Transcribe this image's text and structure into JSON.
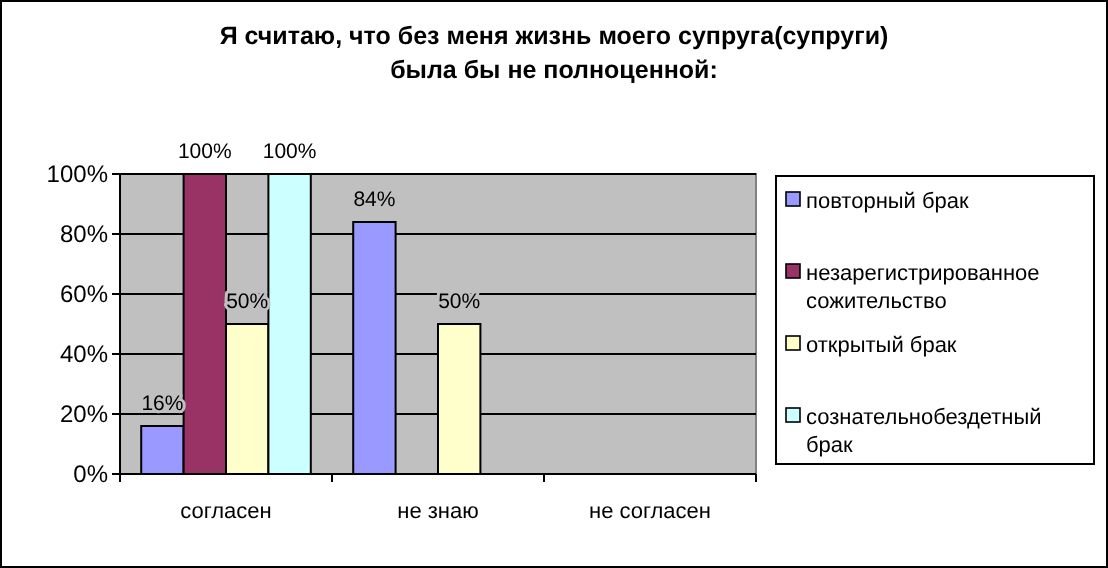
{
  "chart_data": {
    "type": "bar",
    "title": "Я считаю, что без меня жизнь моего супруга(супруги)\nбыла бы не полноценной:",
    "categories": [
      "согласен",
      "не знаю",
      "не согласен"
    ],
    "series": [
      {
        "name": "повторный брак",
        "color": "#9999ff",
        "values": [
          16,
          84,
          null
        ],
        "value_labels": [
          "16%",
          "84%",
          null
        ]
      },
      {
        "name": "незарегистрированное сожительство",
        "color": "#993366",
        "values": [
          100,
          null,
          null
        ],
        "value_labels": [
          "100%",
          null,
          null
        ]
      },
      {
        "name": "открытый брак",
        "color": "#ffffcc",
        "values": [
          50,
          50,
          null
        ],
        "value_labels": [
          "50%",
          "50%",
          null
        ]
      },
      {
        "name": "сознательнобездетный брак",
        "color": "#ccffff",
        "values": [
          100,
          null,
          null
        ],
        "value_labels": [
          "100%",
          null,
          null
        ]
      }
    ],
    "ylim": [
      0,
      100
    ],
    "yticks": [
      {
        "value": 0,
        "label": "0%"
      },
      {
        "value": 20,
        "label": "20%"
      },
      {
        "value": 40,
        "label": "40%"
      },
      {
        "value": 60,
        "label": "60%"
      },
      {
        "value": 80,
        "label": "80%"
      },
      {
        "value": 100,
        "label": "100%"
      }
    ],
    "grid": "y",
    "legend": "right"
  }
}
